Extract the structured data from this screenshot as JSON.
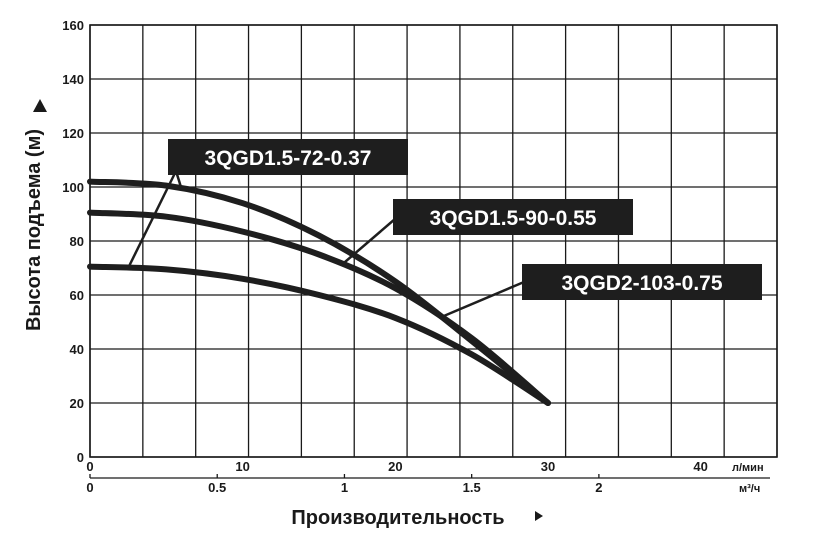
{
  "chart_data": {
    "type": "line",
    "ylabel": "Высота подъема (м)",
    "xlabel": "Производительность",
    "ylim": [
      0,
      160
    ],
    "yticks": [
      0,
      20,
      40,
      60,
      80,
      100,
      120,
      140,
      160
    ],
    "x_primary": {
      "unit": "л/мин",
      "range": [
        0,
        45
      ],
      "ticks": [
        0,
        10,
        20,
        30,
        40
      ]
    },
    "x_secondary": {
      "unit": "м³/ч",
      "ticks": [
        "0",
        "0.5",
        "1",
        "1.5",
        "2"
      ],
      "tick_values": [
        0,
        0.5,
        1,
        1.5,
        2
      ]
    },
    "grid": true,
    "series": [
      {
        "name": "3QGD1.5-72-0.37",
        "x": [
          0,
          5,
          10,
          15,
          20,
          25,
          30
        ],
        "y": [
          70.5,
          69.5,
          66,
          60,
          51.5,
          38,
          20
        ]
      },
      {
        "name": "3QGD1.5-90-0.55",
        "x": [
          0,
          5,
          10,
          15,
          20,
          25,
          30
        ],
        "y": [
          90.5,
          89,
          83.5,
          75,
          62.5,
          44,
          20
        ]
      },
      {
        "name": "3QGD2-103-0.75",
        "x": [
          0,
          5,
          10,
          15,
          20,
          25,
          30
        ],
        "y": [
          102,
          100.5,
          94,
          82,
          65,
          43,
          20
        ]
      }
    ]
  }
}
